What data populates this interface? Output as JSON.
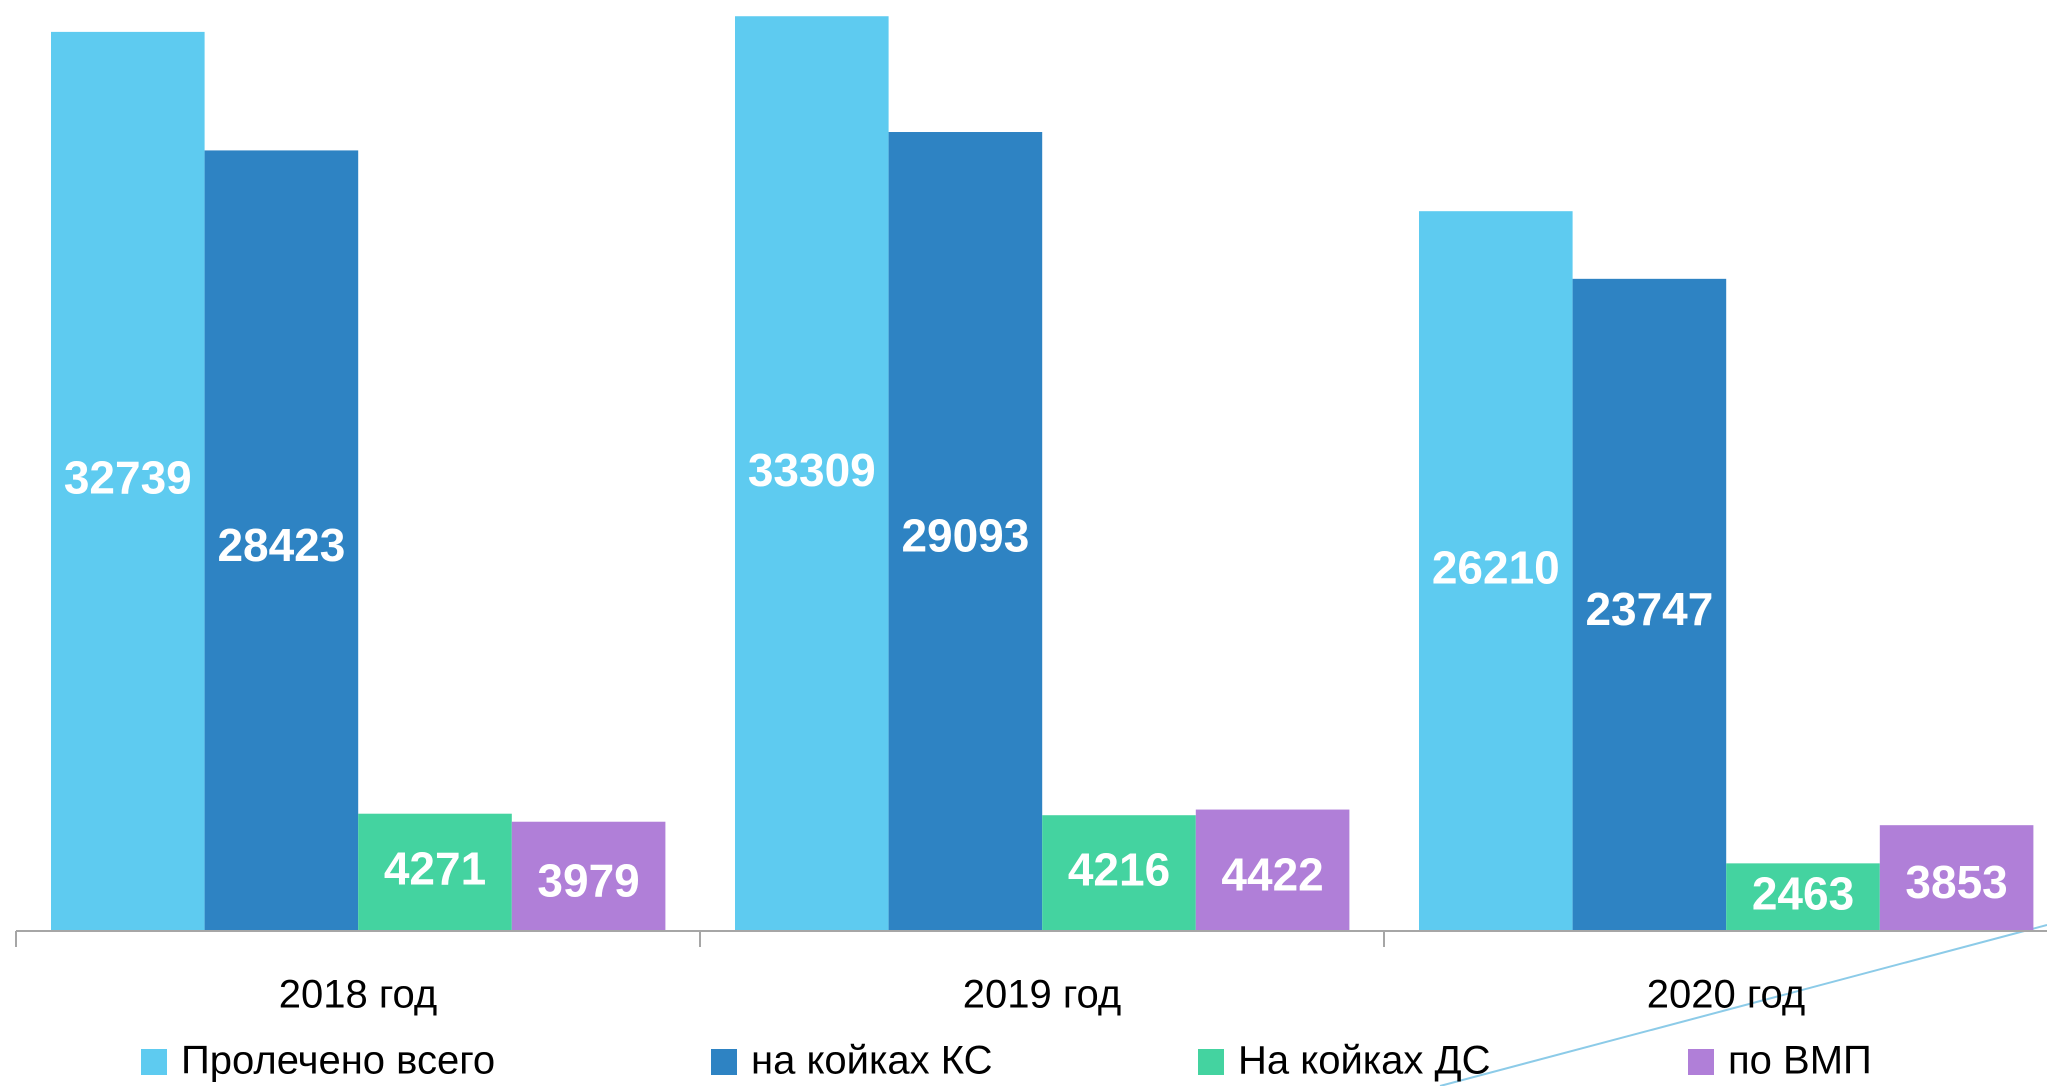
{
  "chart_data": {
    "type": "bar",
    "categories": [
      "2018 год",
      "2019 год",
      "2020 год"
    ],
    "series": [
      {
        "name": "Пролечено всего",
        "color": "#5ecbf0",
        "values": [
          32739,
          33309,
          26210
        ]
      },
      {
        "name": "на койках КС",
        "color": "#2e83c3",
        "values": [
          28423,
          29093,
          23747
        ]
      },
      {
        "name": "На койках ДС",
        "color": "#44d3a0",
        "values": [
          4271,
          4216,
          2463
        ]
      },
      {
        "name": "по ВМП",
        "color": "#b07fd8",
        "values": [
          3979,
          4422,
          3853
        ]
      }
    ],
    "ylim": [
      0,
      33900
    ],
    "legend": "bottom"
  }
}
